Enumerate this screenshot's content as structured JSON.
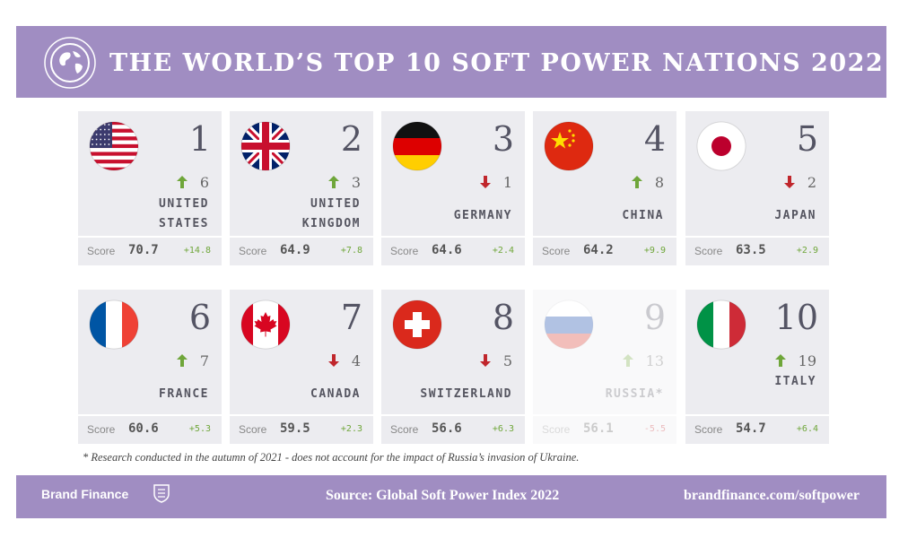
{
  "title": "THE WORLD’S TOP 10 SOFT POWER NATIONS 2022",
  "header_icon": "globe-icon",
  "colors": {
    "banner": "#a08dc2",
    "card": "#ececf0",
    "up": "#6fa63a",
    "down": "#c0262c"
  },
  "score_label": "Score",
  "nations": [
    {
      "rank": "1",
      "flag": "usa-flag-icon",
      "direction": "up",
      "change": "6",
      "country_lines": [
        "UNITED",
        "STATES"
      ],
      "score": "70.7",
      "score_change": "+14.8",
      "faded": false
    },
    {
      "rank": "2",
      "flag": "uk-flag-icon",
      "direction": "up",
      "change": "3",
      "country_lines": [
        "UNITED",
        "KINGDOM"
      ],
      "score": "64.9",
      "score_change": "+7.8",
      "faded": false
    },
    {
      "rank": "3",
      "flag": "germany-flag-icon",
      "direction": "down",
      "change": "1",
      "country_lines": [
        "GERMANY"
      ],
      "score": "64.6",
      "score_change": "+2.4",
      "faded": false
    },
    {
      "rank": "4",
      "flag": "china-flag-icon",
      "direction": "up",
      "change": "8",
      "country_lines": [
        "CHINA"
      ],
      "score": "64.2",
      "score_change": "+9.9",
      "faded": false
    },
    {
      "rank": "5",
      "flag": "japan-flag-icon",
      "direction": "down",
      "change": "2",
      "country_lines": [
        "JAPAN"
      ],
      "score": "63.5",
      "score_change": "+2.9",
      "faded": false
    },
    {
      "rank": "6",
      "flag": "france-flag-icon",
      "direction": "up",
      "change": "7",
      "country_lines": [
        "FRANCE"
      ],
      "score": "60.6",
      "score_change": "+5.3",
      "faded": false
    },
    {
      "rank": "7",
      "flag": "canada-flag-icon",
      "direction": "down",
      "change": "4",
      "country_lines": [
        "CANADA"
      ],
      "score": "59.5",
      "score_change": "+2.3",
      "faded": false
    },
    {
      "rank": "8",
      "flag": "switzerland-flag-icon",
      "direction": "down",
      "change": "5",
      "country_lines": [
        "SWITZERLAND"
      ],
      "score": "56.6",
      "score_change": "+6.3",
      "faded": false
    },
    {
      "rank": "9",
      "flag": "russia-flag-icon",
      "direction": "up",
      "change": "13",
      "country_lines": [
        "RUSSIA*"
      ],
      "score": "56.1",
      "score_change": "-5.5",
      "faded": true
    },
    {
      "rank": "10",
      "flag": "italy-flag-icon",
      "direction": "up",
      "change": "19",
      "country_lines": [
        "ITALY"
      ],
      "score": "54.7",
      "score_change": "+6.4",
      "faded": false
    }
  ],
  "footnote": "* Research conducted in the autumn of 2021 - does not account for the impact of Russia’s invasion of Ukraine.",
  "footer": {
    "brand": "Brand Finance",
    "brand_mark": "brandfinance-logo-icon",
    "source": "Source: Global Soft Power Index 2022",
    "site": "brandfinance.com/softpower"
  }
}
